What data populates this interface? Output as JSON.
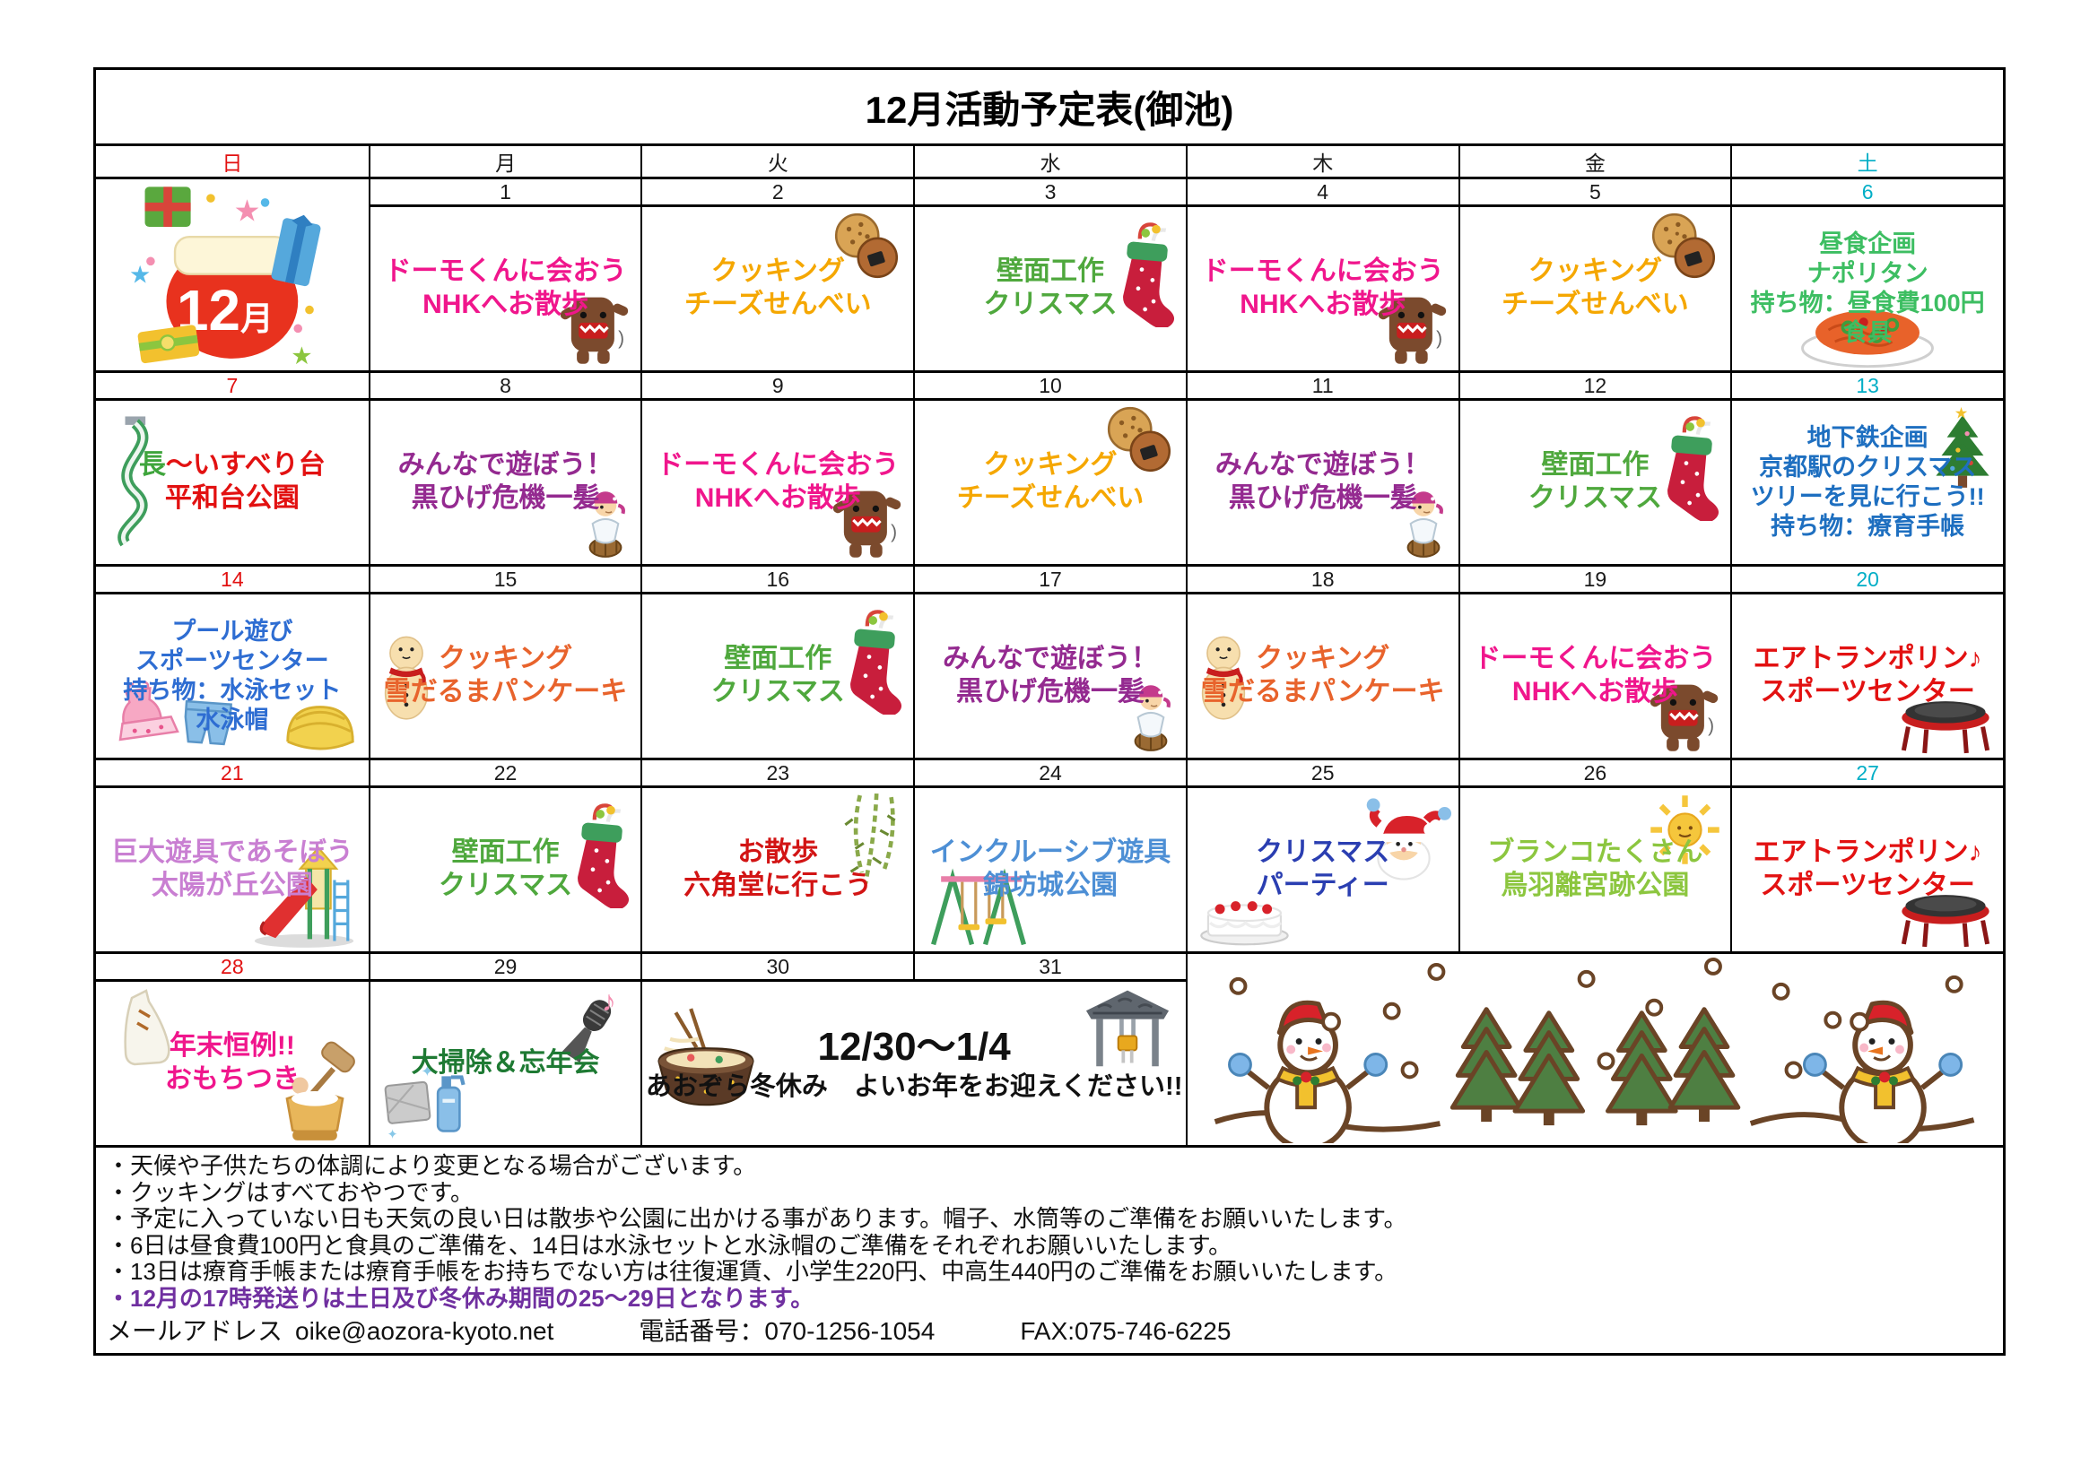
{
  "title": "12月活動予定表(御池)",
  "month_label": "12月",
  "day_headers": [
    {
      "label": "日",
      "color": "#e21111"
    },
    {
      "label": "月",
      "color": "#1a1a1a"
    },
    {
      "label": "火",
      "color": "#1a1a1a"
    },
    {
      "label": "水",
      "color": "#1a1a1a"
    },
    {
      "label": "木",
      "color": "#1a1a1a"
    },
    {
      "label": "金",
      "color": "#1a1a1a"
    },
    {
      "label": "土",
      "color": "#00aec6"
    }
  ],
  "weeks": [
    {
      "cells": [
        {
          "col": 1,
          "full": true,
          "icons": [
            {
              "name": "december-gift-bag-image",
              "pos": "fill"
            }
          ]
        },
        {
          "col": 2,
          "date": "1",
          "color": "#f0168c",
          "size": 30,
          "lines": [
            "ドーモくんに会おう",
            "NHKへお散歩"
          ],
          "icons": [
            {
              "name": "domo-kun-icon",
              "pos": "br"
            }
          ]
        },
        {
          "col": 3,
          "date": "2",
          "color": "#f5a700",
          "size": 30,
          "lines": [
            "クッキング",
            "チーズせんべい"
          ],
          "icons": [
            {
              "name": "cookies-icon",
              "pos": "tr"
            }
          ]
        },
        {
          "col": 4,
          "date": "3",
          "color": "#4fa83d",
          "size": 30,
          "lines": [
            "壁面工作",
            "クリスマス"
          ],
          "icons": [
            {
              "name": "christmas-stocking-icon",
              "pos": "r"
            }
          ]
        },
        {
          "col": 5,
          "date": "4",
          "color": "#f0168c",
          "size": 30,
          "lines": [
            "ドーモくんに会おう",
            "NHKへお散歩"
          ],
          "icons": [
            {
              "name": "domo-kun-icon",
              "pos": "br"
            }
          ]
        },
        {
          "col": 6,
          "date": "5",
          "color": "#f5a700",
          "size": 30,
          "lines": [
            "クッキング",
            "チーズせんべい"
          ],
          "icons": [
            {
              "name": "cookies-icon",
              "pos": "tr"
            }
          ]
        },
        {
          "col": 7,
          "date": "6",
          "dcolor": "#00aec6",
          "color": "#3dbe62",
          "size": 27,
          "lines": [
            "昼食企画",
            "ナポリタン",
            "持ち物：昼食費100円",
            "食具"
          ],
          "icons": [
            {
              "name": "napolitan-icon",
              "pos": "b"
            }
          ]
        }
      ]
    },
    {
      "cells": [
        {
          "col": 1,
          "date": "7",
          "dcolor": "#e21111",
          "color": "#e21111",
          "size": 30,
          "lines": [
            {
              "segments": [
                {
                  "text": "長",
                  "color": "#3fa53c"
                },
                {
                  "text": "～いすべり台",
                  "color": "#e21111"
                }
              ]
            },
            "平和台公園"
          ],
          "icons": [
            {
              "name": "long-slide-icon",
              "pos": "l"
            }
          ]
        },
        {
          "col": 2,
          "date": "8",
          "color": "#942a90",
          "size": 30,
          "lines": [
            "みんなで遊ぼう！",
            "黒ひげ危機一髪"
          ],
          "icons": [
            {
              "name": "pirate-icon",
              "pos": "br"
            }
          ]
        },
        {
          "col": 3,
          "date": "9",
          "color": "#f0168c",
          "size": 30,
          "lines": [
            "ドーモくんに会おう",
            "NHKへお散歩"
          ],
          "icons": [
            {
              "name": "domo-kun-icon",
              "pos": "br"
            }
          ]
        },
        {
          "col": 4,
          "date": "10",
          "color": "#f5a700",
          "size": 30,
          "lines": [
            "クッキング",
            "チーズせんべい"
          ],
          "icons": [
            {
              "name": "cookies-icon",
              "pos": "tr"
            }
          ]
        },
        {
          "col": 5,
          "date": "11",
          "color": "#942a90",
          "size": 30,
          "lines": [
            "みんなで遊ぼう！",
            "黒ひげ危機一髪"
          ],
          "icons": [
            {
              "name": "pirate-icon",
              "pos": "br"
            }
          ]
        },
        {
          "col": 6,
          "date": "12",
          "color": "#4fa83d",
          "size": 30,
          "lines": [
            "壁面工作",
            "クリスマス"
          ],
          "icons": [
            {
              "name": "christmas-stocking-icon",
              "pos": "r"
            }
          ]
        },
        {
          "col": 7,
          "date": "13",
          "dcolor": "#00aec6",
          "color": "#1e6fc0",
          "size": 27,
          "lines": [
            "地下鉄企画",
            "京都駅のクリスマス",
            "ツリーを見に行こう!!",
            "持ち物：療育手帳"
          ],
          "icons": [
            {
              "name": "christmas-tree-icon",
              "pos": "tr"
            }
          ]
        }
      ]
    },
    {
      "cells": [
        {
          "col": 1,
          "date": "14",
          "dcolor": "#e21111",
          "color": "#2e6dd2",
          "size": 27,
          "lines": [
            "プール遊び",
            "スポーツセンター",
            "持ち物：水泳セット",
            "水泳帽"
          ],
          "icons": [
            {
              "name": "swimsuit-icon",
              "pos": "bl"
            },
            {
              "name": "swim-cap-icon",
              "pos": "br"
            }
          ]
        },
        {
          "col": 2,
          "date": "15",
          "color": "#e8632c",
          "size": 30,
          "lines": [
            "クッキング",
            "雪だるまパンケーキ"
          ],
          "icons": [
            {
              "name": "snowman-pancake-icon",
              "pos": "l"
            }
          ]
        },
        {
          "col": 3,
          "date": "16",
          "color": "#4fa83d",
          "size": 30,
          "lines": [
            "壁面工作",
            "クリスマス"
          ],
          "icons": [
            {
              "name": "christmas-stocking-icon",
              "pos": "r"
            }
          ]
        },
        {
          "col": 4,
          "date": "17",
          "color": "#942a90",
          "size": 30,
          "lines": [
            "みんなで遊ぼう！",
            "黒ひげ危機一髪"
          ],
          "icons": [
            {
              "name": "pirate-icon",
              "pos": "br"
            }
          ]
        },
        {
          "col": 5,
          "date": "18",
          "color": "#e8632c",
          "size": 30,
          "lines": [
            "クッキング",
            "雪だるまパンケーキ"
          ],
          "icons": [
            {
              "name": "snowman-pancake-icon",
              "pos": "l"
            }
          ]
        },
        {
          "col": 6,
          "date": "19",
          "color": "#f0168c",
          "size": 30,
          "lines": [
            "ドーモくんに会おう",
            "NHKへお散歩"
          ],
          "icons": [
            {
              "name": "domo-kun-icon",
              "pos": "br"
            }
          ]
        },
        {
          "col": 7,
          "date": "20",
          "dcolor": "#00aec6",
          "color": "#e21111",
          "size": 30,
          "lines": [
            "エアトランポリン♪",
            "スポーツセンター"
          ],
          "icons": [
            {
              "name": "trampoline-icon",
              "pos": "br"
            }
          ]
        }
      ]
    },
    {
      "cells": [
        {
          "col": 1,
          "date": "21",
          "dcolor": "#e21111",
          "color": "#c97fd2",
          "size": 30,
          "lines": [
            "巨大遊具であそぼう",
            "太陽が丘公園"
          ],
          "icons": [
            {
              "name": "playground-slide-icon",
              "pos": "br"
            }
          ]
        },
        {
          "col": 2,
          "date": "22",
          "color": "#4fa83d",
          "size": 30,
          "lines": [
            "壁面工作",
            "クリスマス"
          ],
          "icons": [
            {
              "name": "christmas-stocking-icon",
              "pos": "r"
            }
          ]
        },
        {
          "col": 3,
          "date": "23",
          "color": "#d21414",
          "size": 30,
          "lines": [
            "お散歩",
            "六角堂に行こう"
          ],
          "icons": [
            {
              "name": "willow-branch-icon",
              "pos": "tr"
            }
          ]
        },
        {
          "col": 4,
          "date": "24",
          "color": "#4d8fd5",
          "size": 30,
          "lines": [
            "インクルーシブ遊具",
            "錦坊城公園"
          ],
          "icons": [
            {
              "name": "swing-icon",
              "pos": "bl"
            }
          ]
        },
        {
          "col": 5,
          "date": "25",
          "color": "#2a3eb1",
          "size": 30,
          "lines": [
            "クリスマス",
            "パーティー"
          ],
          "icons": [
            {
              "name": "santa-icon",
              "pos": "tr"
            },
            {
              "name": "christmas-cake-icon",
              "pos": "bl"
            }
          ]
        },
        {
          "col": 6,
          "date": "26",
          "color": "#8cc63f",
          "size": 30,
          "lines": [
            "ブランコたくさん",
            "鳥羽離宮跡公園"
          ],
          "icons": [
            {
              "name": "sun-icon",
              "pos": "tr"
            }
          ]
        },
        {
          "col": 7,
          "date": "27",
          "dcolor": "#00aec6",
          "color": "#e21111",
          "size": 30,
          "lines": [
            "エアトランポリン♪",
            "スポーツセンター"
          ],
          "icons": [
            {
              "name": "trampoline-icon",
              "pos": "br"
            }
          ]
        }
      ]
    },
    {
      "cells": [
        {
          "col": 1,
          "date": "28",
          "dcolor": "#e21111",
          "color": "#f0168c",
          "size": 30,
          "lines": [
            "年末恒例!!",
            "おもちつき"
          ],
          "icons": [
            {
              "name": "kagami-mochi-icon",
              "pos": "tl"
            },
            {
              "name": "mochi-pounding-icon",
              "pos": "br"
            }
          ]
        },
        {
          "col": 2,
          "date": "29",
          "color": "#1e7a33",
          "size": 30,
          "lines": [
            "大掃除＆忘年会"
          ],
          "icons": [
            {
              "name": "microphone-note-icon",
              "pos": "tr"
            },
            {
              "name": "cleaning-spray-icon",
              "pos": "bl"
            }
          ]
        },
        {
          "col": 3,
          "span": 2,
          "dates": [
            "30",
            "31"
          ],
          "color": "#111111",
          "size": 29,
          "lines": [
            {
              "text": "12/30～1/4",
              "size": 44
            },
            {
              "text": "あおぞら冬休み　よいお年をお迎えください!!",
              "size": 29
            }
          ],
          "icons": [
            {
              "name": "ramen-bowl-icon",
              "pos": "l"
            },
            {
              "name": "shrine-bell-icon",
              "pos": "tr"
            }
          ]
        },
        {
          "col": 5,
          "span": 3,
          "full": true,
          "icons": [
            {
              "name": "winter-snowmen-image",
              "pos": "fill"
            }
          ]
        }
      ]
    }
  ],
  "notes": {
    "lines": [
      "・天候や子供たちの体調により変更となる場合がございます。",
      "・クッキングはすべておやつです。",
      "・予定に入っていない日も天気の良い日は散歩や公園に出かける事があります。帽子、水筒等のご準備をお願いいたします。",
      "・6日は昼食費100円と食具のご準備を、14日は水泳セットと水泳帽のご準備をそれぞれお願いいたします。",
      "・13日は療育手帳または療育手帳をお持ちでない方は往復運賃、小学生220円、中高生440円のご準備をお願いいたします。"
    ],
    "highlight": "・12月の17時発送りは土日及び冬休み期間の25～29日となります。",
    "highlight_color": "#7030a0"
  },
  "contact": {
    "email_label": "メールアドレス",
    "email": "oike@aozora-kyoto.net",
    "phone": "電話番号：070-1256-1054",
    "fax": "FAX:075-746-6225"
  }
}
